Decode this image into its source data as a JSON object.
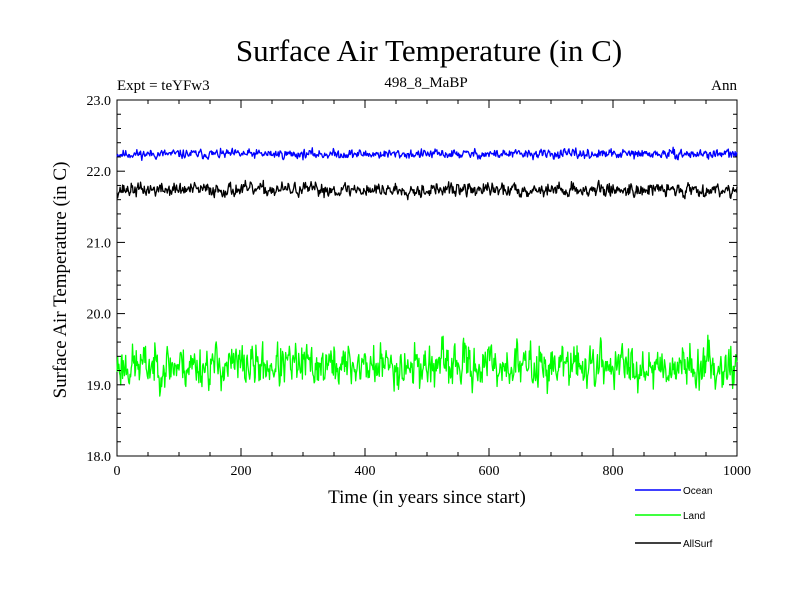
{
  "chart_data": {
    "type": "line",
    "title": "Surface Air Temperature (in C)",
    "subtitle": "498_8_MaBP",
    "expt_label": "Expt = teYFw3",
    "season_label": "Ann",
    "xlabel": "Time (in years since start)",
    "ylabel": "Surface Air Temperature (in C)",
    "xlim": [
      0,
      1000
    ],
    "ylim": [
      18.0,
      23.0
    ],
    "x_ticks": [
      0,
      200,
      400,
      600,
      800,
      1000
    ],
    "x_tick_labels": [
      "0",
      "200",
      "400",
      "600",
      "800",
      "1000"
    ],
    "y_ticks": [
      18.0,
      19.0,
      20.0,
      21.0,
      22.0,
      23.0
    ],
    "y_tick_labels": [
      "18.0",
      "19.0",
      "20.0",
      "21.0",
      "22.0",
      "23.0"
    ],
    "n_points": 1000,
    "series": [
      {
        "name": "Ocean",
        "color": "#0000ff",
        "mean": 22.24,
        "noise": 0.03,
        "min": 22.15,
        "max": 22.34,
        "seed": 11
      },
      {
        "name": "Land",
        "color": "#00ff00",
        "mean": 19.27,
        "noise": 0.14,
        "min": 18.72,
        "max": 19.76,
        "seed": 23
      },
      {
        "name": "AllSurf",
        "color": "#000000",
        "mean": 21.74,
        "noise": 0.045,
        "min": 21.6,
        "max": 21.87,
        "seed": 37
      }
    ]
  }
}
